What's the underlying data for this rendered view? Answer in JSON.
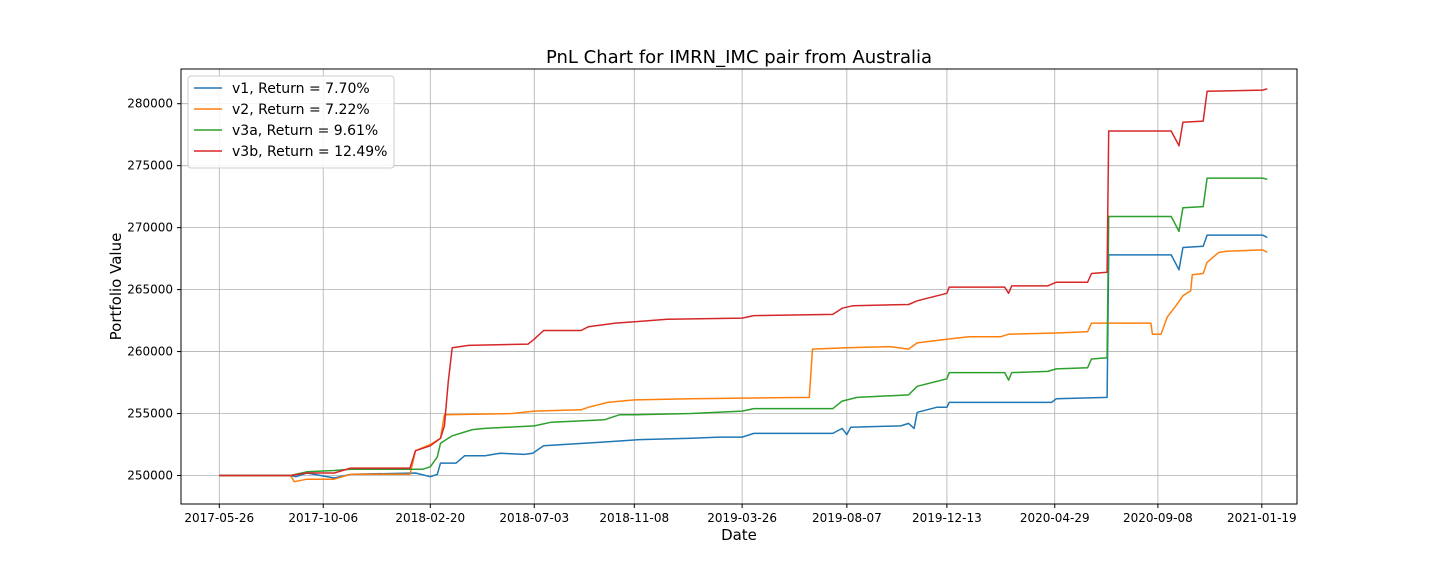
{
  "chart_data": {
    "type": "line",
    "title": "PnL Chart for IMRN_IMC pair from Australia",
    "xlabel": "Date",
    "ylabel": "Portfolio Value",
    "x_ticks": [
      "2017-05-26",
      "2017-10-06",
      "2018-02-20",
      "2018-07-03",
      "2018-11-08",
      "2019-03-26",
      "2019-08-07",
      "2019-12-13",
      "2020-04-29",
      "2020-09-08",
      "2021-01-19"
    ],
    "y_ticks": [
      250000,
      255000,
      260000,
      265000,
      270000,
      275000,
      280000
    ],
    "y_tick_labels": [
      "250000",
      "255000",
      "260000",
      "265000",
      "270000",
      "275000",
      "280000"
    ],
    "xlim": [
      "2017-04-07",
      "2021-03-05"
    ],
    "ylim": [
      247700,
      282800
    ],
    "grid": true,
    "legend_position": "top-left",
    "series": [
      {
        "name": "v1, Return = 7.70%",
        "color": "#1f77b4",
        "points": [
          [
            "2017-05-26",
            250000
          ],
          [
            "2017-08-25",
            250000
          ],
          [
            "2017-09-01",
            249900
          ],
          [
            "2017-09-15",
            250200
          ],
          [
            "2017-10-20",
            249800
          ],
          [
            "2017-11-10",
            250100
          ],
          [
            "2018-02-01",
            250200
          ],
          [
            "2018-02-20",
            249900
          ],
          [
            "2018-03-01",
            250100
          ],
          [
            "2018-03-05",
            251000
          ],
          [
            "2018-03-25",
            251000
          ],
          [
            "2018-04-05",
            251600
          ],
          [
            "2018-05-01",
            251600
          ],
          [
            "2018-05-20",
            251800
          ],
          [
            "2018-06-20",
            251700
          ],
          [
            "2018-07-01",
            251800
          ],
          [
            "2018-07-15",
            252400
          ],
          [
            "2018-10-01",
            252700
          ],
          [
            "2018-11-15",
            252900
          ],
          [
            "2019-01-20",
            253000
          ],
          [
            "2019-02-25",
            253100
          ],
          [
            "2019-03-26",
            253100
          ],
          [
            "2019-04-10",
            253400
          ],
          [
            "2019-07-20",
            253400
          ],
          [
            "2019-08-01",
            253800
          ],
          [
            "2019-08-07",
            253300
          ],
          [
            "2019-08-12",
            253900
          ],
          [
            "2019-10-15",
            254000
          ],
          [
            "2019-10-25",
            254200
          ],
          [
            "2019-11-01",
            253800
          ],
          [
            "2019-11-05",
            255100
          ],
          [
            "2019-11-30",
            255500
          ],
          [
            "2019-12-13",
            255500
          ],
          [
            "2019-12-16",
            255900
          ],
          [
            "2020-04-25",
            255900
          ],
          [
            "2020-05-01",
            256200
          ],
          [
            "2020-07-05",
            256300
          ],
          [
            "2020-07-07",
            267800
          ],
          [
            "2020-09-25",
            267800
          ],
          [
            "2020-10-05",
            266600
          ],
          [
            "2020-10-10",
            268400
          ],
          [
            "2020-11-05",
            268500
          ],
          [
            "2020-11-10",
            269400
          ],
          [
            "2021-01-20",
            269400
          ],
          [
            "2021-01-26",
            269200
          ]
        ]
      },
      {
        "name": "v2, Return = 7.22%",
        "color": "#ff7f0e",
        "points": [
          [
            "2017-05-26",
            250000
          ],
          [
            "2017-08-25",
            250000
          ],
          [
            "2017-08-30",
            249500
          ],
          [
            "2017-09-15",
            249700
          ],
          [
            "2017-10-20",
            249700
          ],
          [
            "2017-11-10",
            250100
          ],
          [
            "2018-01-25",
            250100
          ],
          [
            "2018-02-01",
            252000
          ],
          [
            "2018-02-20",
            252500
          ],
          [
            "2018-03-05",
            253000
          ],
          [
            "2018-03-10",
            254900
          ],
          [
            "2018-06-05",
            255000
          ],
          [
            "2018-07-03",
            255200
          ],
          [
            "2018-09-01",
            255300
          ],
          [
            "2018-09-10",
            255500
          ],
          [
            "2018-10-05",
            255900
          ],
          [
            "2018-11-08",
            256100
          ],
          [
            "2019-01-20",
            256200
          ],
          [
            "2019-06-20",
            256300
          ],
          [
            "2019-06-24",
            260200
          ],
          [
            "2019-08-07",
            260300
          ],
          [
            "2019-10-01",
            260400
          ],
          [
            "2019-10-25",
            260200
          ],
          [
            "2019-11-05",
            260700
          ],
          [
            "2019-12-13",
            261000
          ],
          [
            "2020-01-10",
            261200
          ],
          [
            "2020-02-20",
            261200
          ],
          [
            "2020-03-01",
            261400
          ],
          [
            "2020-05-01",
            261500
          ],
          [
            "2020-06-10",
            261600
          ],
          [
            "2020-06-15",
            262300
          ],
          [
            "2020-08-30",
            262300
          ],
          [
            "2020-09-01",
            261400
          ],
          [
            "2020-09-12",
            261400
          ],
          [
            "2020-09-20",
            262800
          ],
          [
            "2020-09-30",
            263600
          ],
          [
            "2020-10-10",
            264500
          ],
          [
            "2020-10-20",
            264900
          ],
          [
            "2020-10-22",
            266200
          ],
          [
            "2020-11-05",
            266300
          ],
          [
            "2020-11-10",
            267200
          ],
          [
            "2020-11-25",
            268000
          ],
          [
            "2020-12-05",
            268100
          ],
          [
            "2021-01-20",
            268200
          ],
          [
            "2021-01-26",
            268000
          ]
        ]
      },
      {
        "name": "v3a, Return = 9.61%",
        "color": "#2ca02c",
        "points": [
          [
            "2017-05-26",
            250000
          ],
          [
            "2017-08-25",
            250000
          ],
          [
            "2017-09-15",
            250300
          ],
          [
            "2017-10-20",
            250400
          ],
          [
            "2017-11-10",
            250500
          ],
          [
            "2018-02-10",
            250500
          ],
          [
            "2018-02-20",
            250700
          ],
          [
            "2018-03-01",
            251500
          ],
          [
            "2018-03-05",
            252600
          ],
          [
            "2018-03-20",
            253200
          ],
          [
            "2018-04-15",
            253700
          ],
          [
            "2018-05-01",
            253800
          ],
          [
            "2018-07-03",
            254000
          ],
          [
            "2018-07-25",
            254300
          ],
          [
            "2018-10-01",
            254500
          ],
          [
            "2018-10-20",
            254900
          ],
          [
            "2018-11-08",
            254900
          ],
          [
            "2019-01-20",
            255000
          ],
          [
            "2019-03-26",
            255200
          ],
          [
            "2019-04-10",
            255400
          ],
          [
            "2019-07-20",
            255400
          ],
          [
            "2019-08-01",
            256000
          ],
          [
            "2019-08-20",
            256300
          ],
          [
            "2019-10-25",
            256500
          ],
          [
            "2019-11-05",
            257200
          ],
          [
            "2019-12-13",
            257800
          ],
          [
            "2019-12-16",
            258300
          ],
          [
            "2020-02-25",
            258300
          ],
          [
            "2020-03-01",
            257700
          ],
          [
            "2020-03-05",
            258300
          ],
          [
            "2020-04-20",
            258400
          ],
          [
            "2020-05-01",
            258600
          ],
          [
            "2020-06-10",
            258700
          ],
          [
            "2020-06-15",
            259400
          ],
          [
            "2020-07-05",
            259500
          ],
          [
            "2020-07-07",
            270900
          ],
          [
            "2020-09-25",
            270900
          ],
          [
            "2020-10-05",
            269700
          ],
          [
            "2020-10-10",
            271600
          ],
          [
            "2020-11-05",
            271700
          ],
          [
            "2020-11-10",
            274000
          ],
          [
            "2021-01-20",
            274000
          ],
          [
            "2021-01-26",
            273900
          ]
        ]
      },
      {
        "name": "v3b, Return = 12.49%",
        "color": "#d62728",
        "points": [
          [
            "2017-05-26",
            250000
          ],
          [
            "2017-08-25",
            250000
          ],
          [
            "2017-09-15",
            250200
          ],
          [
            "2017-10-20",
            250200
          ],
          [
            "2017-11-10",
            250600
          ],
          [
            "2018-01-25",
            250600
          ],
          [
            "2018-02-01",
            252000
          ],
          [
            "2018-02-20",
            252400
          ],
          [
            "2018-03-05",
            253000
          ],
          [
            "2018-03-10",
            254000
          ],
          [
            "2018-03-15",
            257600
          ],
          [
            "2018-03-20",
            260300
          ],
          [
            "2018-04-10",
            260500
          ],
          [
            "2018-06-25",
            260600
          ],
          [
            "2018-07-03",
            261000
          ],
          [
            "2018-07-15",
            261700
          ],
          [
            "2018-09-01",
            261700
          ],
          [
            "2018-09-10",
            262000
          ],
          [
            "2018-10-15",
            262300
          ],
          [
            "2018-11-08",
            262400
          ],
          [
            "2018-12-20",
            262600
          ],
          [
            "2019-03-26",
            262700
          ],
          [
            "2019-04-10",
            262900
          ],
          [
            "2019-07-20",
            263000
          ],
          [
            "2019-08-01",
            263500
          ],
          [
            "2019-08-15",
            263700
          ],
          [
            "2019-10-25",
            263800
          ],
          [
            "2019-11-05",
            264100
          ],
          [
            "2019-12-13",
            264700
          ],
          [
            "2019-12-16",
            265200
          ],
          [
            "2020-02-25",
            265200
          ],
          [
            "2020-03-01",
            264700
          ],
          [
            "2020-03-05",
            265300
          ],
          [
            "2020-04-20",
            265300
          ],
          [
            "2020-05-01",
            265600
          ],
          [
            "2020-06-10",
            265600
          ],
          [
            "2020-06-15",
            266300
          ],
          [
            "2020-07-05",
            266400
          ],
          [
            "2020-07-07",
            277800
          ],
          [
            "2020-09-25",
            277800
          ],
          [
            "2020-10-05",
            276600
          ],
          [
            "2020-10-10",
            278500
          ],
          [
            "2020-11-05",
            278600
          ],
          [
            "2020-11-10",
            281000
          ],
          [
            "2021-01-20",
            281100
          ],
          [
            "2021-01-26",
            281200
          ]
        ]
      }
    ]
  }
}
